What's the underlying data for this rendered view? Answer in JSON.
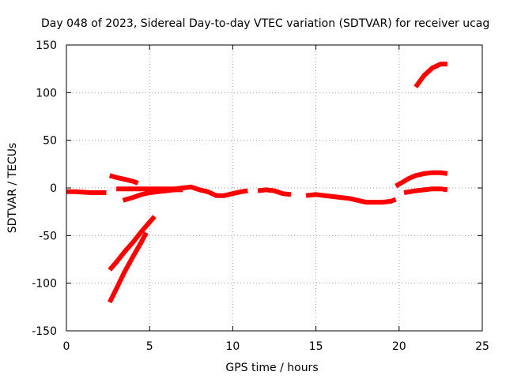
{
  "chart_data": {
    "type": "line",
    "title": "Day 048 of 2023, Sidereal Day-to-day VTEC variation (SDTVAR) for receiver ucag",
    "xlabel": "GPS time / hours",
    "ylabel": "SDTVAR / TECUs",
    "xlim": [
      0,
      25
    ],
    "ylim": [
      -150,
      150
    ],
    "xticks": [
      0,
      5,
      10,
      15,
      20,
      25
    ],
    "yticks": [
      -150,
      -100,
      -50,
      0,
      50,
      100,
      150
    ],
    "grid": true,
    "legend": "none",
    "series_color": "#ff0000",
    "series": [
      {
        "x": [
          0.0,
          0.5,
          1.0,
          1.5,
          2.0,
          2.4
        ],
        "y": [
          -4,
          -4,
          -4.5,
          -5,
          -5,
          -5
        ]
      },
      {
        "x": [
          2.6,
          3.0,
          3.5,
          4.0,
          4.3
        ],
        "y": [
          13,
          11,
          9,
          7,
          5
        ]
      },
      {
        "x": [
          3.0,
          3.5,
          4.0,
          4.5,
          5.0,
          5.5,
          6.0,
          6.5,
          7.0,
          7.5,
          8.0,
          8.5,
          9.0,
          9.5,
          10.0,
          10.5,
          10.9
        ],
        "y": [
          -1,
          -1,
          -1,
          -1,
          -1,
          -1,
          -1,
          -1,
          0,
          1,
          -2,
          -4,
          -8,
          -8,
          -6,
          -4,
          -3
        ]
      },
      {
        "x": [
          3.4,
          4.0,
          4.5,
          5.0,
          5.5,
          6.0,
          6.5,
          7.0
        ],
        "y": [
          -13,
          -10,
          -7,
          -5,
          -4,
          -3,
          -2,
          -2
        ]
      },
      {
        "x": [
          2.6,
          3.0,
          3.5,
          4.0,
          4.5,
          5.0,
          5.3
        ],
        "y": [
          -86,
          -78,
          -67,
          -57,
          -46,
          -36,
          -30
        ]
      },
      {
        "x": [
          2.6,
          3.0,
          3.5,
          4.0,
          4.5,
          4.8
        ],
        "y": [
          -120,
          -106,
          -88,
          -72,
          -57,
          -47
        ]
      },
      {
        "x": [
          11.5,
          12.0,
          12.5,
          13.0,
          13.5
        ],
        "y": [
          -3,
          -2,
          -3,
          -6,
          -7
        ]
      },
      {
        "x": [
          14.4,
          15.0,
          15.5,
          16.0,
          16.5,
          17.0,
          17.5,
          18.0,
          18.5,
          19.0,
          19.5,
          19.8
        ],
        "y": [
          -8,
          -7,
          -8,
          -9,
          -10,
          -11,
          -13,
          -15,
          -15,
          -15,
          -14,
          -12
        ]
      },
      {
        "x": [
          19.8,
          20.2,
          20.6,
          21.0,
          21.5,
          22.0,
          22.5,
          22.9
        ],
        "y": [
          2,
          6,
          10,
          13,
          15,
          16,
          16,
          15
        ]
      },
      {
        "x": [
          20.3,
          21.0,
          21.5,
          22.0,
          22.5,
          22.9
        ],
        "y": [
          -5,
          -3,
          -2,
          -1,
          -1,
          -2
        ]
      },
      {
        "x": [
          21.0,
          21.5,
          22.0,
          22.5,
          22.9
        ],
        "y": [
          106,
          118,
          126,
          130,
          130
        ]
      }
    ]
  }
}
